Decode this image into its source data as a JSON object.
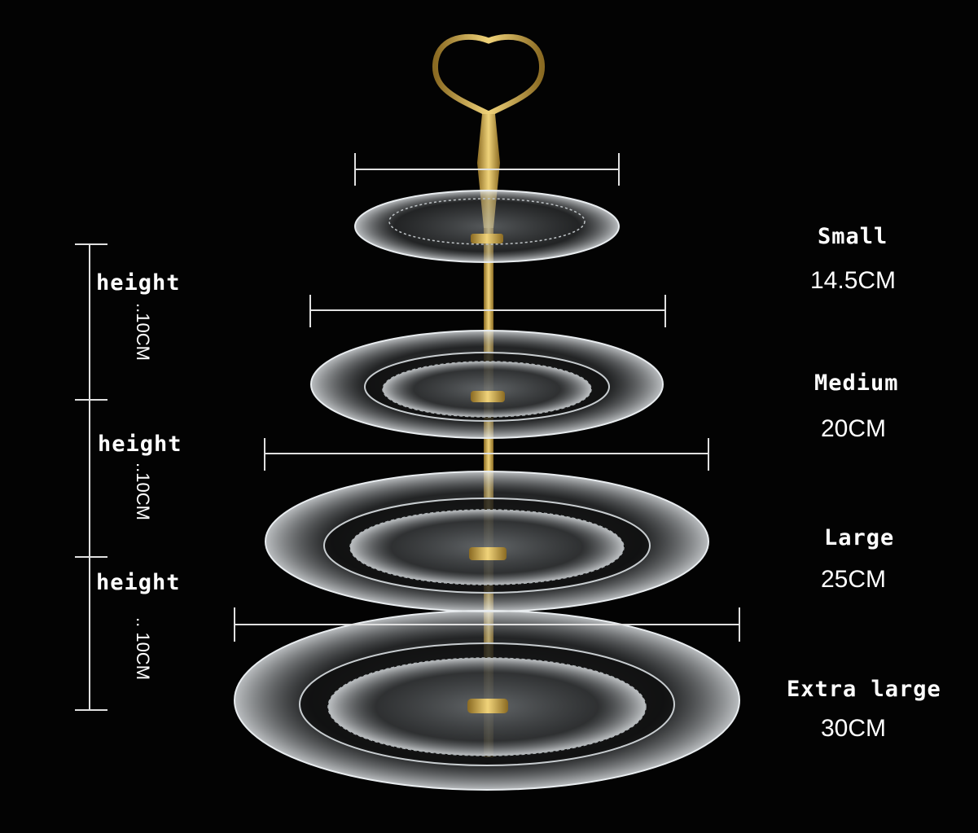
{
  "tiers": [
    {
      "name": "Small",
      "size": "14.5CM"
    },
    {
      "name": "Medium",
      "size": "20CM"
    },
    {
      "name": "Large",
      "size": "25CM"
    },
    {
      "name": "Extra large",
      "size": "30CM"
    }
  ],
  "heights": [
    {
      "word": "height",
      "dim": "..10CM"
    },
    {
      "word": "height",
      "dim": "..10CM"
    },
    {
      "word": "height",
      "dim": ".. 10CM"
    }
  ],
  "colors": {
    "background": "#030303",
    "gold": "#c9a24a",
    "glass": "#d9dde0",
    "text": "#ffffff"
  }
}
